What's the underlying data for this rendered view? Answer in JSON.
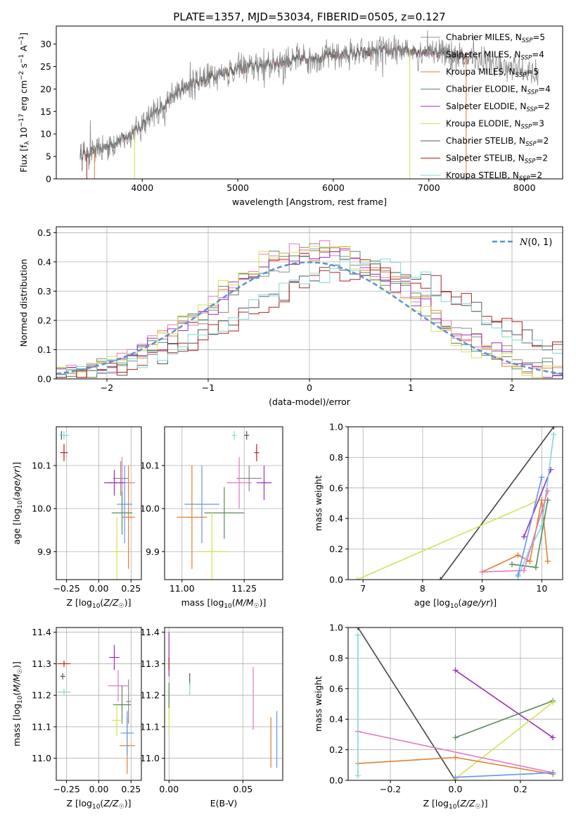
{
  "figure_title": "PLATE=1357, MJD=53034, FIBERID=0505, z=0.127",
  "legend_labels": [
    {
      "base": "Chabrier MILES, N",
      "sub": "SSP",
      "tail": "=5"
    },
    {
      "base": "Salpeter MILES, N",
      "sub": "SSP",
      "tail": "=4"
    },
    {
      "base": "Kroupa MILES, N",
      "sub": "SSP",
      "tail": "=5"
    },
    {
      "base": "Chabrier ELODIE, N",
      "sub": "SSP",
      "tail": "=4"
    },
    {
      "base": "Salpeter ELODIE, N",
      "sub": "SSP",
      "tail": "=2"
    },
    {
      "base": "Kroupa ELODIE, N",
      "sub": "SSP",
      "tail": "=3"
    },
    {
      "base": "Chabrier STELIB, N",
      "sub": "SSP",
      "tail": "=2"
    },
    {
      "base": "Salpeter STELIB, N",
      "sub": "SSP",
      "tail": "=2"
    },
    {
      "base": "Kroupa STELIB, N",
      "sub": "SSP",
      "tail": "=2"
    }
  ],
  "colors": [
    "#8c8c8c",
    "#e377c2",
    "#e08030",
    "#5a8a5a",
    "#9b30b8",
    "#d4e157",
    "#555555",
    "#b22222",
    "#80d8d8"
  ],
  "extra_colors": {
    "blue": "#6495ed",
    "dark": "#444444"
  },
  "chart_data": [
    {
      "type": "line",
      "title": "PLATE=1357, MJD=53034, FIBERID=0505, z=0.127",
      "xlabel": "wavelength [Angstrom, rest frame]",
      "ylabel": "Flux [f_λ 10^-17 erg cm^-2 s^-1 A^-1]",
      "xlim": [
        3100,
        8400
      ],
      "ylim": [
        0,
        34
      ],
      "xticks": [
        4000,
        5000,
        6000,
        7000,
        8000
      ],
      "yticks": [
        0,
        5,
        10,
        15,
        20,
        25,
        30
      ],
      "grid": false,
      "legend": "right",
      "continuum_x": [
        3400,
        3600,
        3800,
        3950,
        4100,
        4300,
        4500,
        4800,
        5000,
        5300,
        5600,
        6000,
        6300,
        6600,
        6900,
        7200,
        7500,
        7800,
        8100
      ],
      "continuum_y": [
        5.5,
        7,
        9,
        11,
        14,
        18,
        21,
        23.5,
        24.5,
        25.5,
        26.5,
        27.5,
        28,
        28.5,
        28.5,
        28,
        26.5,
        25,
        23.5
      ]
    },
    {
      "type": "line",
      "xlabel": "(data-model)/error",
      "ylabel": "Normed distribution",
      "xlim": [
        -2.5,
        2.5
      ],
      "ylim": [
        0,
        0.52
      ],
      "xticks": [
        -2,
        -1,
        0,
        1,
        2
      ],
      "yticks": [
        0.0,
        0.1,
        0.2,
        0.3,
        0.4,
        0.5
      ],
      "grid": true,
      "legend": "top-right",
      "gaussian_label": "N(0,1)",
      "histogram_bin_width": 0.1
    },
    {
      "type": "scatter",
      "xlabel": "Z [log10(Z/Z☉)]",
      "ylabel": "age [log10(age/yr)]",
      "xlim": [
        -0.33,
        0.33
      ],
      "ylim": [
        9.835,
        10.19
      ],
      "xticks": [
        -0.25,
        0.0,
        0.25
      ],
      "yticks": [
        9.9,
        10.0,
        10.1
      ],
      "grid": true,
      "points": [
        {
          "c": 0,
          "x": 0.17,
          "y": 10.07,
          "xe": 0.06,
          "ye": 0.04
        },
        {
          "c": 1,
          "x": 0.18,
          "y": 10.06,
          "xe": 0.1,
          "ye": 0.06
        },
        {
          "c": 2,
          "x": 0.23,
          "y": 9.98,
          "xe": 0.05,
          "ye": 0.12
        },
        {
          "c": 3,
          "x": 0.18,
          "y": 9.99,
          "xe": 0.08,
          "ye": 0.05
        },
        {
          "c": 4,
          "x": 0.12,
          "y": 10.06,
          "xe": 0.08,
          "ye": 0.03
        },
        {
          "c": 5,
          "x": 0.14,
          "y": 9.9,
          "xe": 0.05,
          "ye": 0.08
        },
        {
          "c": 6,
          "x": -0.29,
          "y": 10.17,
          "xe": 0.01,
          "ye": 0.01
        },
        {
          "c": 7,
          "x": -0.27,
          "y": 10.13,
          "xe": 0.03,
          "ye": 0.02
        },
        {
          "c": 8,
          "x": -0.27,
          "y": 10.17,
          "xe": 0.04,
          "ye": 0.01
        },
        {
          "c": "blue",
          "x": 0.2,
          "y": 10.01,
          "xe": 0.06,
          "ye": 0.09
        }
      ]
    },
    {
      "type": "scatter",
      "xlabel": "mass [log10(M/M☉)]",
      "ylabel": "",
      "xlim": [
        10.93,
        11.405
      ],
      "ylim": [
        9.835,
        10.19
      ],
      "xticks": [
        11.0,
        11.25
      ],
      "yticks": [
        9.9,
        10.0,
        10.1
      ],
      "grid": true,
      "points": [
        {
          "c": 0,
          "x": 11.27,
          "y": 10.07,
          "xe": 0.05,
          "ye": 0.03
        },
        {
          "c": 1,
          "x": 11.23,
          "y": 10.06,
          "xe": 0.05,
          "ye": 0.06
        },
        {
          "c": 2,
          "x": 11.04,
          "y": 9.98,
          "xe": 0.06,
          "ye": 0.12
        },
        {
          "c": 3,
          "x": 11.17,
          "y": 9.99,
          "xe": 0.08,
          "ye": 0.06
        },
        {
          "c": 4,
          "x": 11.33,
          "y": 10.06,
          "xe": 0.03,
          "ye": 0.04
        },
        {
          "c": 5,
          "x": 11.12,
          "y": 9.9,
          "xe": 0.06,
          "ye": 0.09
        },
        {
          "c": 6,
          "x": 11.26,
          "y": 10.17,
          "xe": 0.01,
          "ye": 0.01
        },
        {
          "c": 7,
          "x": 11.3,
          "y": 10.13,
          "xe": 0.01,
          "ye": 0.02
        },
        {
          "c": 8,
          "x": 11.21,
          "y": 10.17,
          "xe": 0.01,
          "ye": 0.01
        },
        {
          "c": "blue",
          "x": 11.08,
          "y": 10.01,
          "xe": 0.07,
          "ye": 0.09
        }
      ]
    },
    {
      "type": "line",
      "xlabel": "age [log10(age/yr)]",
      "ylabel": "mass weight",
      "xlim": [
        6.75,
        10.35
      ],
      "ylim": [
        0,
        1
      ],
      "xticks": [
        7,
        8,
        9,
        10
      ],
      "yticks": [
        0.0,
        0.2,
        0.4,
        0.6,
        0.8,
        1.0
      ],
      "grid": true,
      "series": [
        {
          "c": "dark",
          "x": [
            8.3,
            10.2
          ],
          "y": [
            0.0,
            1.0
          ]
        },
        {
          "c": 5,
          "x": [
            6.9,
            9.9
          ],
          "y": [
            0.0,
            0.51
          ]
        },
        {
          "c": 2,
          "x": [
            9.0,
            9.6,
            9.8,
            10.0,
            10.1
          ],
          "y": [
            0.05,
            0.16,
            0.12,
            0.52,
            0.12
          ]
        },
        {
          "c": 4,
          "x": [
            9.7,
            10.15
          ],
          "y": [
            0.28,
            0.72
          ]
        },
        {
          "c": 8,
          "x": [
            9.6,
            9.8,
            10.0,
            10.2
          ],
          "y": [
            0.02,
            0.2,
            0.35,
            0.95
          ]
        },
        {
          "c": 3,
          "x": [
            9.5,
            9.9,
            10.1
          ],
          "y": [
            0.1,
            0.08,
            0.52
          ]
        },
        {
          "c": 1,
          "x": [
            9.0,
            9.7,
            10.1
          ],
          "y": [
            0.05,
            0.06,
            0.58
          ]
        },
        {
          "c": "blue",
          "x": [
            9.6,
            10.0
          ],
          "y": [
            0.03,
            0.67
          ]
        }
      ]
    },
    {
      "type": "scatter",
      "xlabel": "Z [log10(Z/Z☉)]",
      "ylabel": "mass [log10(M/M☉)]",
      "xlim": [
        -0.33,
        0.33
      ],
      "ylim": [
        10.93,
        11.415
      ],
      "xticks": [
        -0.25,
        0.0,
        0.25
      ],
      "yticks": [
        11.0,
        11.1,
        11.2,
        11.3,
        11.4
      ],
      "grid": true,
      "points": [
        {
          "c": 0,
          "x": 0.23,
          "y": 11.18,
          "xe": 0.02,
          "ye": 0.07
        },
        {
          "c": 1,
          "x": 0.15,
          "y": 11.23,
          "xe": 0.08,
          "ye": 0.05
        },
        {
          "c": 2,
          "x": 0.22,
          "y": 11.04,
          "xe": 0.06,
          "ye": 0.09
        },
        {
          "c": 3,
          "x": 0.18,
          "y": 11.17,
          "xe": 0.07,
          "ye": 0.06
        },
        {
          "c": 4,
          "x": 0.12,
          "y": 11.32,
          "xe": 0.04,
          "ye": 0.04
        },
        {
          "c": 5,
          "x": 0.14,
          "y": 11.12,
          "xe": 0.04,
          "ye": 0.05
        },
        {
          "c": 6,
          "x": -0.28,
          "y": 11.26,
          "xe": 0.02,
          "ye": 0.01
        },
        {
          "c": 7,
          "x": -0.27,
          "y": 11.3,
          "xe": 0.05,
          "ye": 0.01
        },
        {
          "c": 8,
          "x": -0.27,
          "y": 11.21,
          "xe": 0.05,
          "ye": 0.01
        },
        {
          "c": "blue",
          "x": 0.22,
          "y": 11.08,
          "xe": 0.05,
          "ye": 0.07
        }
      ]
    },
    {
      "type": "scatter",
      "xlabel": "E(B-V)",
      "ylabel": "",
      "xlim": [
        -0.003,
        0.077
      ],
      "ylim": [
        10.93,
        11.415
      ],
      "xticks": [
        0.0,
        0.05
      ],
      "yticks": [
        11.0,
        11.1,
        11.2,
        11.3,
        11.4
      ],
      "grid": true,
      "points": [
        {
          "c": 1,
          "x": 0.057,
          "y": 11.19,
          "xe": 0,
          "ye": 0.1
        },
        {
          "c": 2,
          "x": 0.069,
          "y": 11.05,
          "xe": 0,
          "ye": 0.08
        },
        {
          "c": 4,
          "x": 0.0,
          "y": 11.33,
          "xe": 0,
          "ye": 0.07
        },
        {
          "c": 5,
          "x": 0.0,
          "y": 11.15,
          "xe": 0,
          "ye": 0.07
        },
        {
          "c": 6,
          "x": 0.014,
          "y": 11.25,
          "xe": 0,
          "ye": 0.02
        },
        {
          "c": 7,
          "x": 0.0,
          "y": 11.3,
          "xe": 0,
          "ye": 0.02
        },
        {
          "c": 8,
          "x": 0.014,
          "y": 11.22,
          "xe": 0,
          "ye": 0.02
        },
        {
          "c": 3,
          "x": 0.0,
          "y": 11.2,
          "xe": 0,
          "ye": 0.04
        },
        {
          "c": "blue",
          "x": 0.073,
          "y": 11.06,
          "xe": 0,
          "ye": 0.09
        }
      ]
    },
    {
      "type": "line",
      "xlabel": "Z [log10(Z/Z☉)]",
      "ylabel": "mass weight",
      "xlim": [
        -0.33,
        0.33
      ],
      "ylim": [
        0,
        1
      ],
      "xticks": [
        -0.2,
        0.0,
        0.2
      ],
      "yticks": [
        0.0,
        0.2,
        0.4,
        0.6,
        0.8,
        1.0
      ],
      "grid": true,
      "series": [
        {
          "c": "dark",
          "x": [
            -0.3,
            0.0
          ],
          "y": [
            1.0,
            0.0
          ]
        },
        {
          "c": 4,
          "x": [
            0.0,
            0.3
          ],
          "y": [
            0.72,
            0.28
          ]
        },
        {
          "c": 3,
          "x": [
            0.0,
            0.3
          ],
          "y": [
            0.28,
            0.52
          ]
        },
        {
          "c": 5,
          "x": [
            0.0,
            0.3
          ],
          "y": [
            0.01,
            0.51
          ]
        },
        {
          "c": 1,
          "x": [
            -0.3,
            0.3
          ],
          "y": [
            0.32,
            0.05
          ]
        },
        {
          "c": 2,
          "x": [
            -0.3,
            0.0,
            0.3
          ],
          "y": [
            0.11,
            0.15,
            0.04
          ]
        },
        {
          "c": "blue",
          "x": [
            0.0,
            0.3
          ],
          "y": [
            0.02,
            0.05
          ]
        },
        {
          "c": 8,
          "x": [
            -0.3,
            -0.3
          ],
          "y": [
            0.03,
            0.95
          ]
        }
      ]
    }
  ]
}
